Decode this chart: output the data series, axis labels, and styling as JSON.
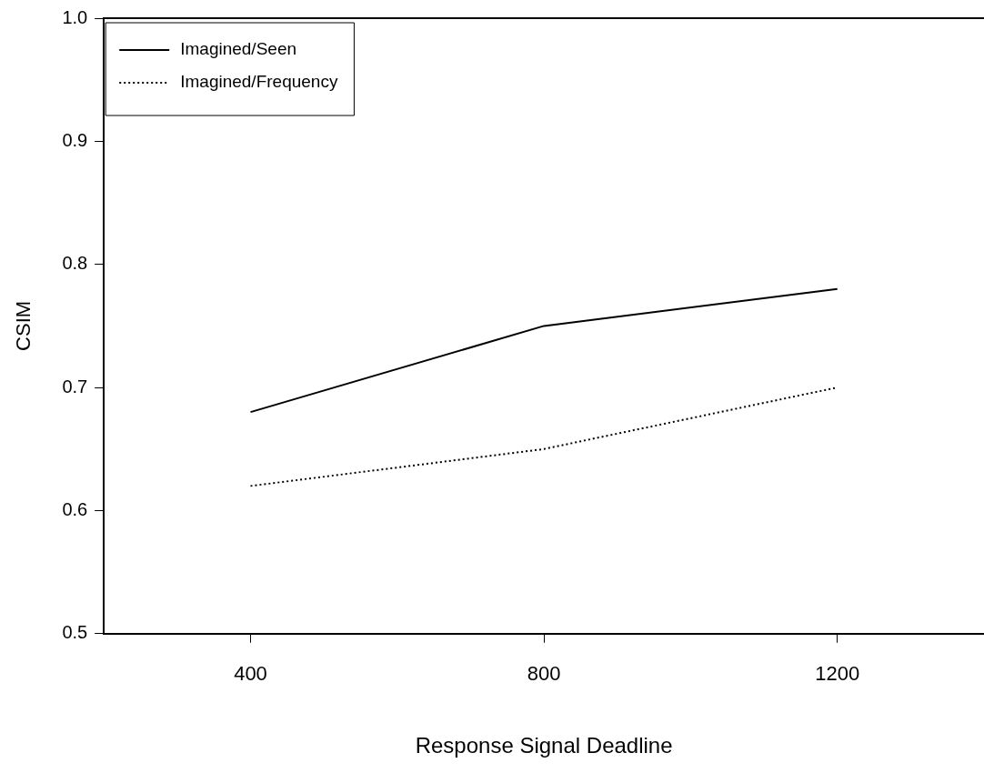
{
  "chart_data": {
    "type": "line",
    "xlabel": "Response Signal Deadline",
    "ylabel": "CSIM",
    "x": [
      400,
      800,
      1200
    ],
    "series": [
      {
        "name": "Imagined/Seen",
        "color": "#000000",
        "values": [
          0.68,
          0.75,
          0.78
        ],
        "line_style": "solid"
      },
      {
        "name": "Imagined/Frequency",
        "color": "#000000",
        "values": [
          0.62,
          0.65,
          0.7
        ],
        "line_style": "dotted"
      }
    ],
    "xlim": [
      200,
      1400
    ],
    "xticks": [
      400,
      800,
      1200
    ],
    "ylim": [
      0.5,
      1.0
    ],
    "yticks": [
      0.5,
      0.6,
      0.7,
      0.8,
      0.9,
      {
        "value": 1,
        "label": "1.0"
      }
    ],
    "grid": false,
    "legend": "top left",
    "marker": "none"
  }
}
